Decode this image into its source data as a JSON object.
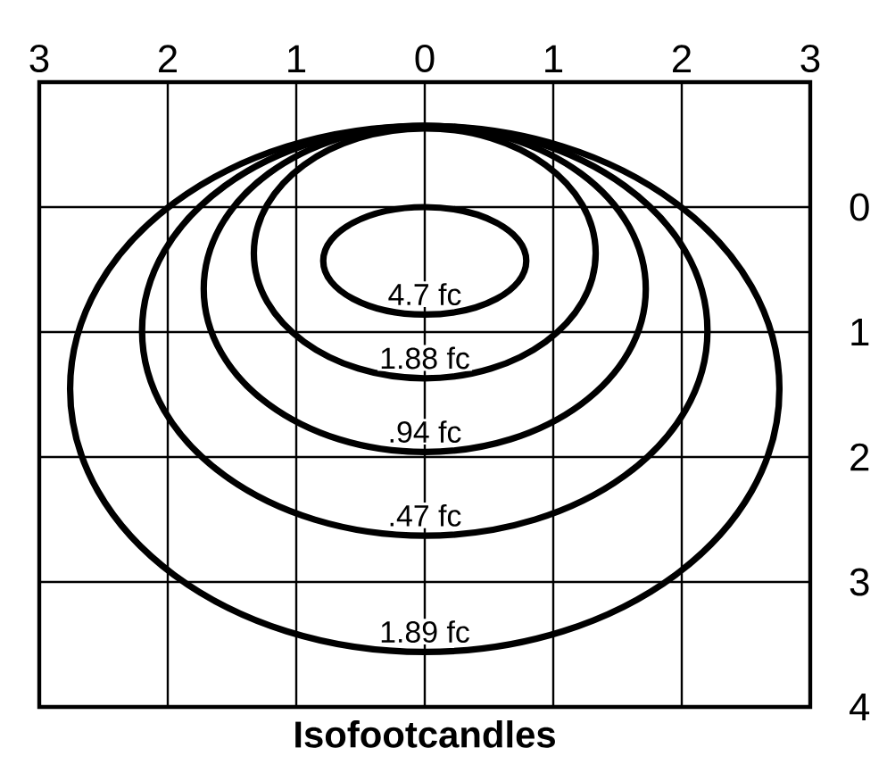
{
  "chart_data": {
    "type": "line",
    "title": "Isofootcandles",
    "xlim": [
      -3,
      3
    ],
    "xticks": [
      {
        "value": -3,
        "label": "3"
      },
      {
        "value": -2,
        "label": "2"
      },
      {
        "value": -1,
        "label": "1"
      },
      {
        "value": 0,
        "label": "0"
      },
      {
        "value": 1,
        "label": "1"
      },
      {
        "value": 2,
        "label": "2"
      },
      {
        "value": 3,
        "label": "3"
      }
    ],
    "ylim": [
      4,
      -1
    ],
    "yticks": [
      0,
      1,
      2,
      3,
      4
    ],
    "grid": true,
    "annotations": [
      "4.7 fc",
      "1.88 fc",
      ".94 fc",
      ".47 fc",
      "1.89 fc"
    ]
  }
}
